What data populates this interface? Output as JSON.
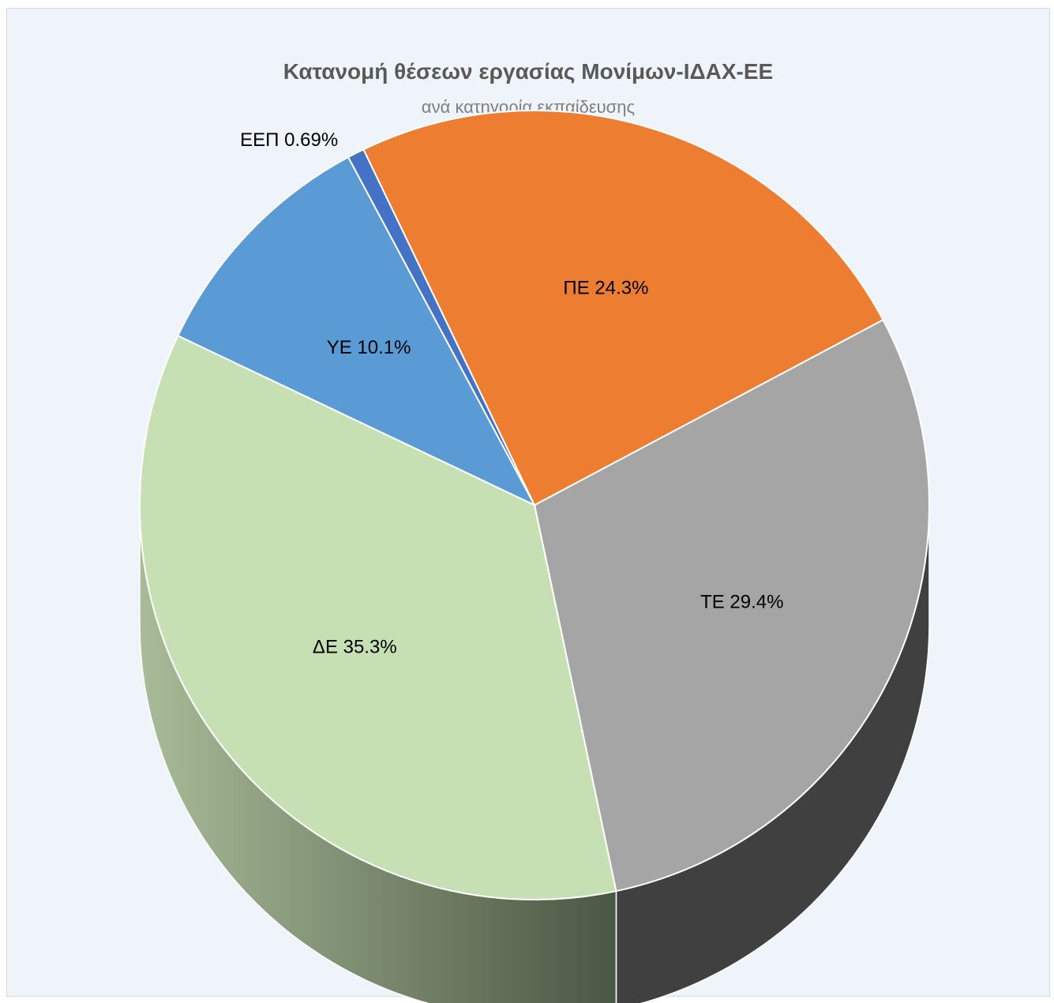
{
  "chart_data": {
    "type": "pie",
    "title": "Κατανομή θέσεων εργασίας Μονίμων-ΙΔΑΧ-ΕΕ",
    "subtitle": "ανά κατηγορία εκπαίδευσης",
    "three_d": true,
    "slices": [
      {
        "category": "ΤΕ",
        "value": 29.4,
        "label": "ΤΕ 29.4%",
        "color": "#a5a5a5",
        "side_color": "#404040"
      },
      {
        "category": "ΔΕ",
        "value": 35.3,
        "label": "ΔΕ  35.3%",
        "color": "#c6e0b4",
        "side_color": "#8fa27f"
      },
      {
        "category": "ΥΕ",
        "value": 10.1,
        "label": "ΥΕ 10.1%",
        "color": "#5b9bd5",
        "side_color": "#3c6a94"
      },
      {
        "category": "ΕΕΠ",
        "value": 0.69,
        "label": "ΕΕΠ 0.69%",
        "color": "#4472c4",
        "side_color": "#2f4f88"
      },
      {
        "category": "ΠΕ",
        "value": 24.3,
        "label": "ΠΕ 24.3%",
        "color": "#ed7d31",
        "side_color": "#a8561f"
      }
    ]
  }
}
